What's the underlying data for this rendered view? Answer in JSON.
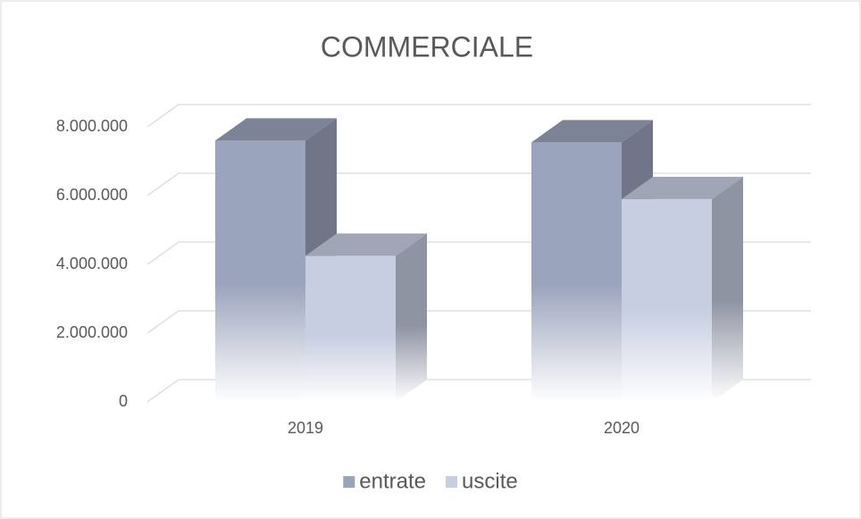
{
  "chart_data": {
    "type": "bar3d",
    "title": "COMMERCIALE",
    "categories": [
      "2019",
      "2020"
    ],
    "series": [
      {
        "name": "entrate",
        "color": "#9ba4bd",
        "values": [
          7600000,
          7550000
        ]
      },
      {
        "name": "uscite",
        "color": "#c7cee2",
        "values": [
          4250000,
          5900000
        ]
      }
    ],
    "ylim": [
      0,
      8000000
    ],
    "yticks": [
      0,
      {
        "value": 2000000,
        "label": "2.000.000"
      },
      {
        "value": 4000000,
        "label": "4.000.000"
      },
      {
        "value": 6000000,
        "label": "6.000.000"
      },
      {
        "value": 8000000,
        "label": "8.000.000"
      }
    ],
    "grid": true,
    "legend": "bottom"
  }
}
